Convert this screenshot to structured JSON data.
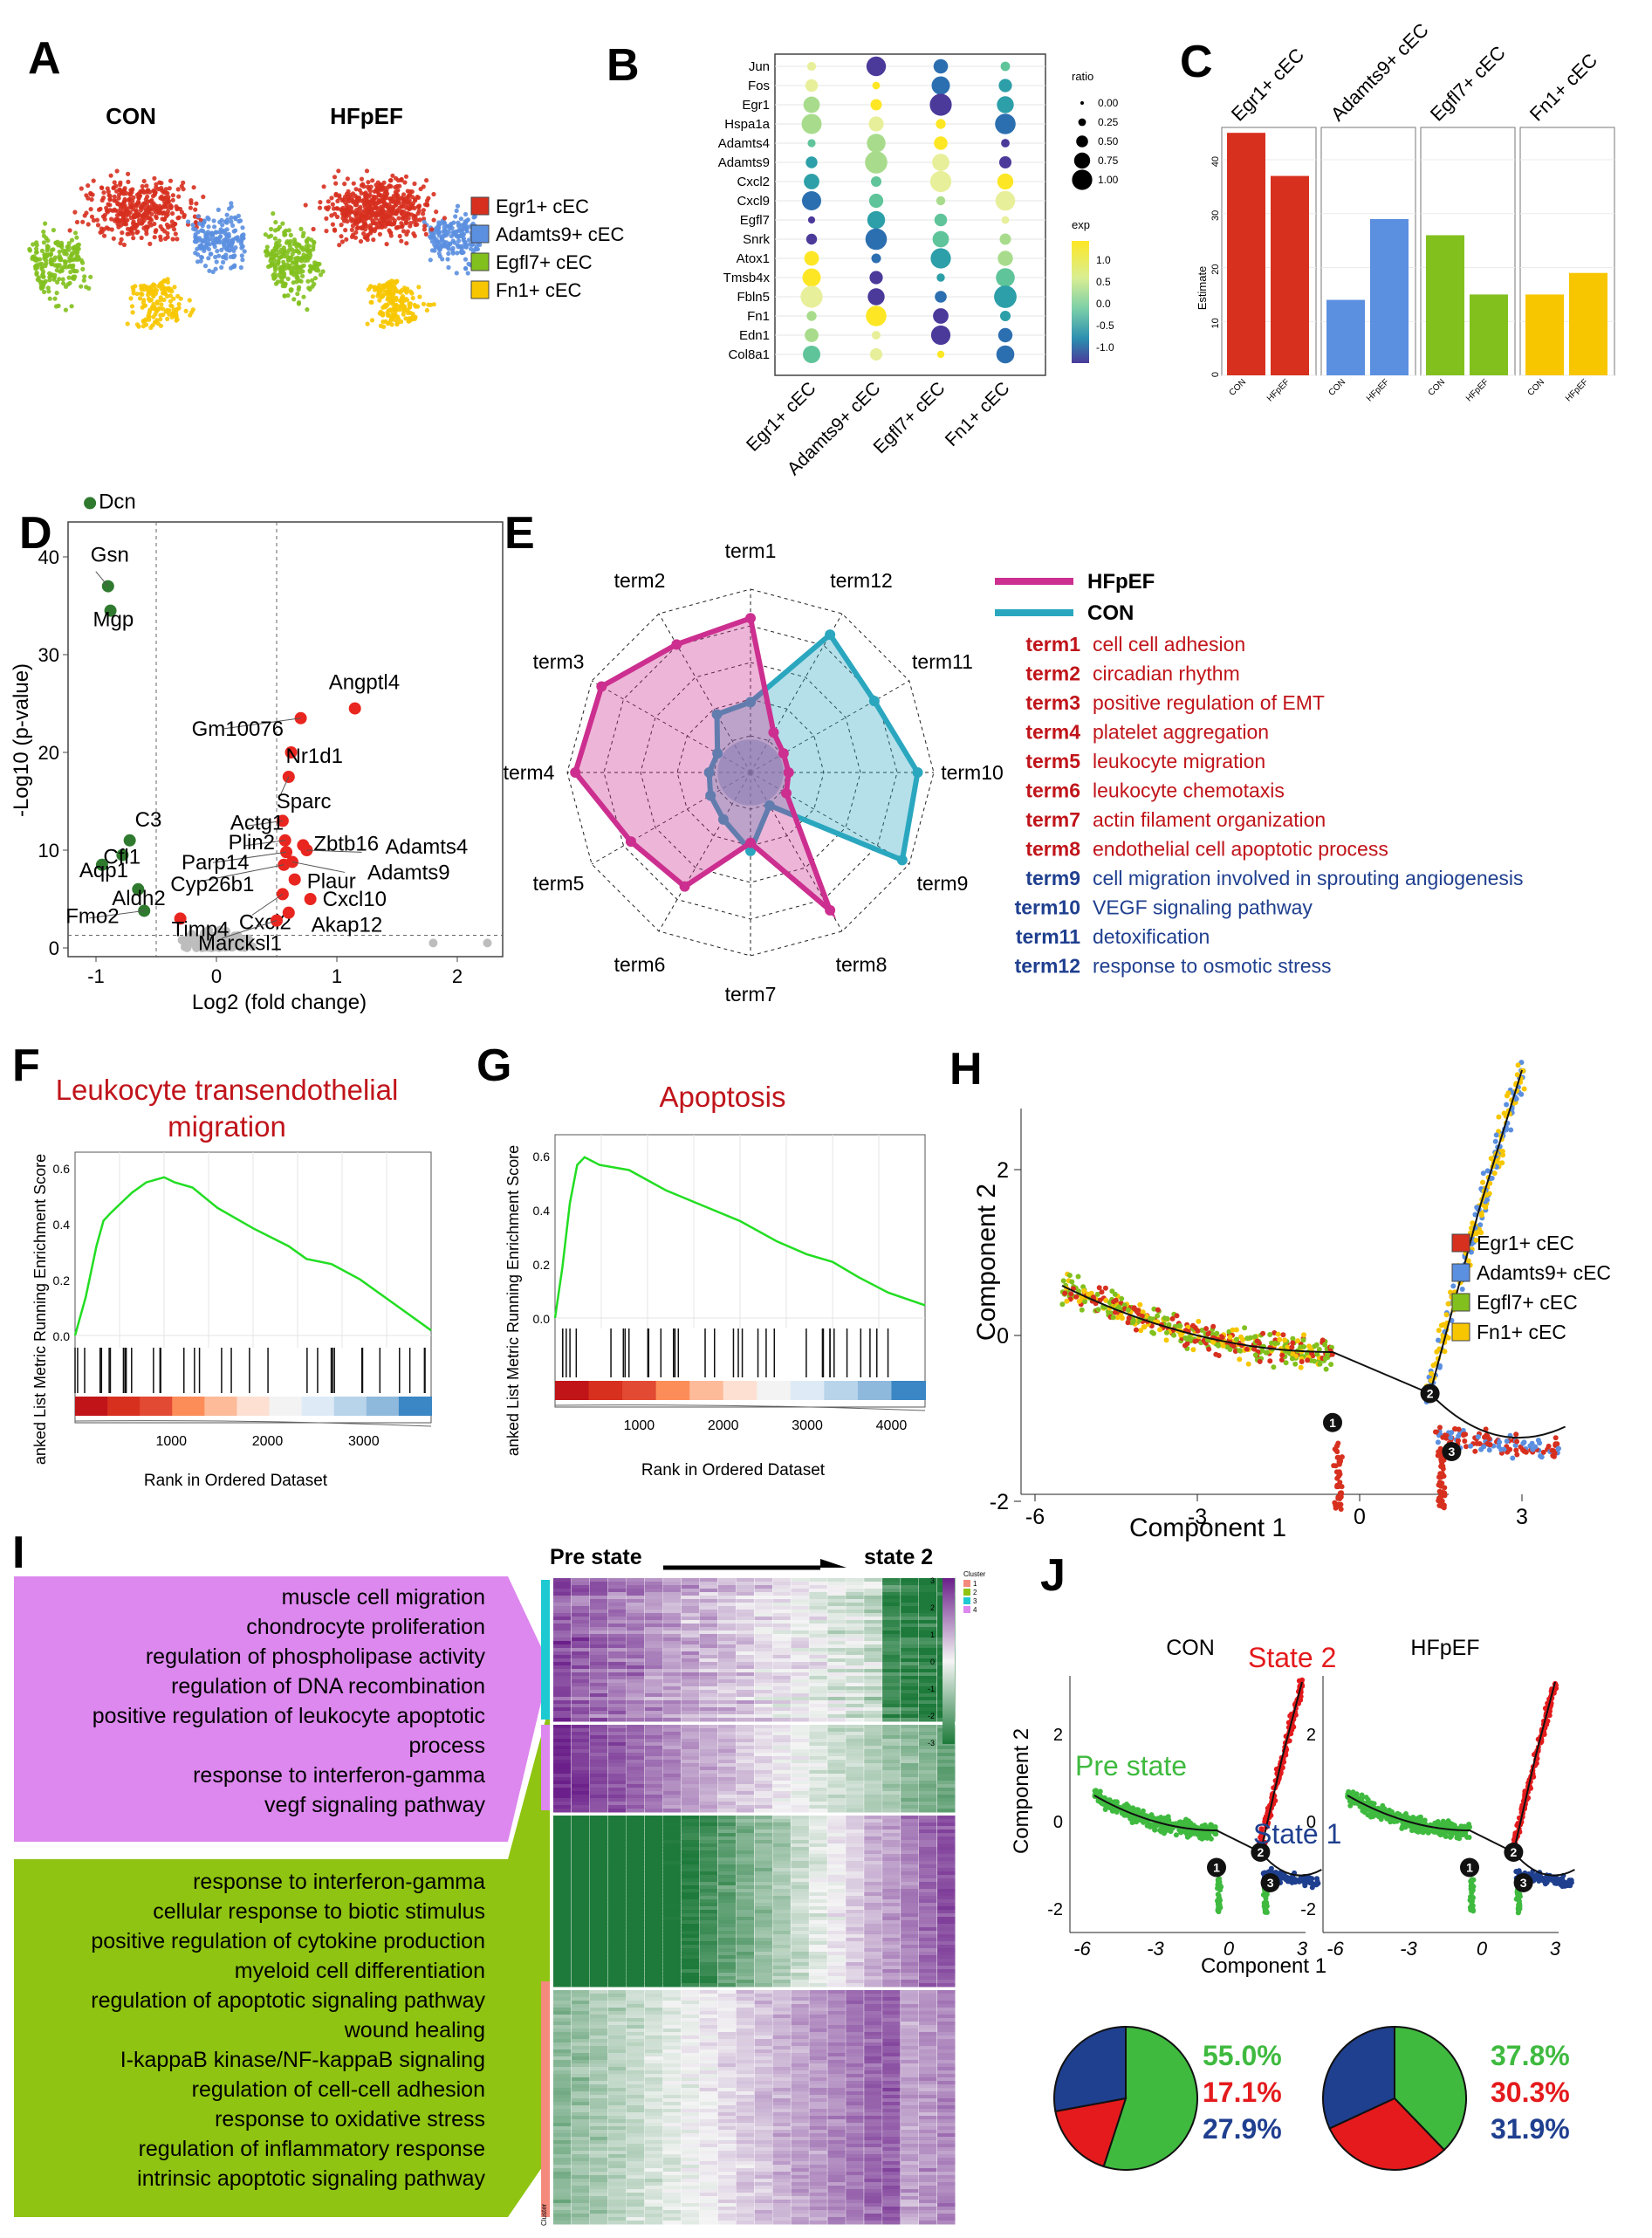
{
  "panels": {
    "A": "A",
    "B": "B",
    "C": "C",
    "D": "D",
    "E": "E",
    "F": "F",
    "G": "G",
    "H": "H",
    "I": "I",
    "J": "J"
  },
  "colors": {
    "egr1": "#d7301f",
    "adamts9": "#5b8fe0",
    "egfl7": "#82c01e",
    "fn1": "#f7c600",
    "hfpef": "#cc2f8f",
    "con": "#2aa7bf",
    "pre": "#3fba3f",
    "state2": "#e41a1c",
    "state1": "#1f3f8f"
  },
  "clusters": [
    "Egr1+ cEC",
    "Adamts9+ cEC",
    "Egfl7+ cEC",
    "Fn1+ cEC"
  ],
  "panelA": {
    "titles": [
      "CON",
      "HFpEF"
    ]
  },
  "panelB": {
    "genes": [
      "Jun",
      "Fos",
      "Egr1",
      "Hspa1a",
      "Adamts4",
      "Adamts9",
      "Cxcl2",
      "Cxcl9",
      "Egfl7",
      "Snrk",
      "Atox1",
      "Tmsb4x",
      "Fbln5",
      "Fn1",
      "Edn1",
      "Col8a1"
    ],
    "size_legend": {
      "title": "ratio",
      "values": [
        "0.00",
        "0.25",
        "0.50",
        "0.75",
        "1.00"
      ]
    },
    "color_legend": {
      "title": "exp",
      "ticks": [
        "1.0",
        "0.5",
        "0.0",
        "-0.5",
        "-1.0"
      ]
    }
  },
  "panelC": {
    "ylabel": "Estimate",
    "yticks": [
      "0",
      "10",
      "20",
      "30",
      "40"
    ],
    "xticks": [
      "CON",
      "HFpEF"
    ]
  },
  "panelD": {
    "xlabel": "Log2 (fold change)",
    "ylabel": "-Log10 (p-value)",
    "xticks": [
      "-1",
      "0",
      "1",
      "2"
    ],
    "yticks": [
      "0",
      "10",
      "20",
      "30",
      "40"
    ],
    "labels": [
      "Dcn",
      "Gsn",
      "Mgp",
      "C3",
      "Cfl1",
      "Aqp1",
      "Aldh2",
      "Fmo2",
      "Timp4",
      "Cyp26b1",
      "Parp14",
      "Cxcl2",
      "Marcksl1",
      "Angptl4",
      "Gm10076",
      "Nr1d1",
      "Sparc",
      "Actg1",
      "Plin2",
      "Zbtb16",
      "Adamts4",
      "Adamts9",
      "Plaur",
      "Cxcl10",
      "Akap12"
    ]
  },
  "panelE": {
    "legend": [
      "HFpEF",
      "CON"
    ],
    "terms": [
      {
        "id": "term1",
        "name": "cell cell adhesion"
      },
      {
        "id": "term2",
        "name": "circadian rhythm"
      },
      {
        "id": "term3",
        "name": "positive regulation of EMT"
      },
      {
        "id": "term4",
        "name": "platelet aggregation"
      },
      {
        "id": "term5",
        "name": "leukocyte migration"
      },
      {
        "id": "term6",
        "name": "leukocyte chemotaxis"
      },
      {
        "id": "term7",
        "name": "actin filament organization"
      },
      {
        "id": "term8",
        "name": "endothelial cell apoptotic process"
      },
      {
        "id": "term9",
        "name": "cell migration involved in sprouting angiogenesis"
      },
      {
        "id": "term10",
        "name": "VEGF signaling pathway"
      },
      {
        "id": "term11",
        "name": "detoxification"
      },
      {
        "id": "term12",
        "name": "response to osmotic stress"
      }
    ],
    "hfpef": [
      0.82,
      0.78,
      0.93,
      0.95,
      0.72,
      0.68,
      0.3,
      0.85,
      0.12,
      0.1,
      0.1,
      0.15
    ],
    "con": [
      0.3,
      0.28,
      0.1,
      0.12,
      0.15,
      0.2,
      0.35,
      0.1,
      0.95,
      0.9,
      0.75,
      0.85
    ]
  },
  "panelF": {
    "title_l1": "Leukocyte transendothelial",
    "title_l2": "migration",
    "ylabel": "anked List Metric Running Enrichment Score",
    "xlabel": "Rank in Ordered Dataset",
    "yticks": [
      "0.0",
      "0.2",
      "0.4",
      "0.6"
    ],
    "xticks": [
      "1000",
      "2000",
      "3000"
    ]
  },
  "panelG": {
    "title": "Apoptosis",
    "ylabel": "anked List Metric Running Enrichment Score",
    "xlabel": "Rank in Ordered Dataset",
    "yticks": [
      "0.0",
      "0.2",
      "0.4",
      "0.6"
    ],
    "xticks": [
      "1000",
      "2000",
      "3000",
      "4000"
    ]
  },
  "panelH": {
    "xlabel": "Component 1",
    "ylabel": "Component 2",
    "xticks": [
      "-6",
      "-3",
      "0",
      "3"
    ],
    "yticks": [
      "-2",
      "0",
      "2"
    ]
  },
  "panelI": {
    "header_left": "Pre state",
    "header_right": "state 2",
    "legend_title": "Cluster",
    "legend_items": [
      "1",
      "2",
      "3",
      "4"
    ],
    "pink_terms": [
      "muscle cell migration",
      "chondrocyte proliferation",
      "regulation of phospholipase activity",
      "regulation of DNA recombination",
      "positive regulation of leukocyte apoptotic",
      "process",
      "response to interferon-gamma",
      "vegf signaling pathway"
    ],
    "green_terms": [
      "response to interferon-gamma",
      "cellular response to biotic stimulus",
      "positive regulation of cytokine production",
      "myeloid cell differentiation",
      "regulation of apoptotic signaling pathway",
      "wound healing",
      "I-kappaB kinase/NF-kappaB signaling",
      "regulation of cell-cell adhesion",
      "response to oxidative stress",
      "regulation of inflammatory response",
      "intrinsic apoptotic signaling pathway"
    ],
    "scale_ticks": [
      "3",
      "2",
      "1",
      "0",
      "-1",
      "-2",
      "-3"
    ],
    "side_label": "Cluster"
  },
  "panelJ": {
    "titles": [
      "CON",
      "HFpEF"
    ],
    "state2": "State 2",
    "pre": "Pre state",
    "state1": "State 1",
    "xlabel": "Component 1",
    "ylabel": "Component 2",
    "xticks": [
      "-6",
      "-3",
      "0",
      "3"
    ],
    "yticks": [
      "-2",
      "0",
      "2"
    ],
    "con_pct": [
      "55.0%",
      "17.1%",
      "27.9%"
    ],
    "hfpef_pct": [
      "37.8%",
      "30.3%",
      "31.9%"
    ],
    "con_pie": [
      55.0,
      17.1,
      27.9
    ],
    "hfpef_pie": [
      37.8,
      30.3,
      31.9
    ]
  }
}
